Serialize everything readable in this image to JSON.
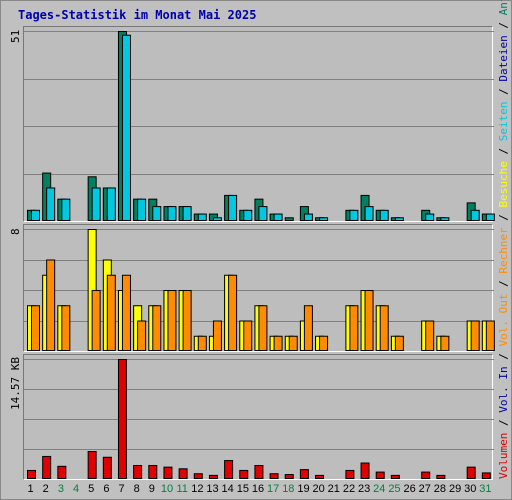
{
  "title": "Tages-Statistik im Monat Mai 2025",
  "max_labels": {
    "requests": "51",
    "visits": "8",
    "volume": "14.57 KB"
  },
  "legend": {
    "volume": "Volumen",
    "vol_in": "Vol. In",
    "vol_out": "Vol. Out",
    "hosts": "Rechner",
    "visits": "Besuche",
    "pages": "Seiten",
    "files": "Dateien",
    "requests": "Anfragen",
    "separator": " / "
  },
  "colors": {
    "requests": "#008060",
    "files": "#00c8e0",
    "visits": "#ffff00",
    "hosts": "#ff8c00",
    "volume": "#e00000",
    "vol_in": "#0000a0",
    "vol_out": "#ff8c00",
    "weekend_day": "#008040",
    "weekday": "#000000"
  },
  "chart_data": [
    {
      "type": "bar",
      "title": "Anfragen / Dateien",
      "categories": [
        "1",
        "2",
        "3",
        "4",
        "5",
        "6",
        "7",
        "8",
        "9",
        "10",
        "11",
        "12",
        "13",
        "14",
        "15",
        "16",
        "17",
        "18",
        "19",
        "20",
        "21",
        "22",
        "23",
        "24",
        "25",
        "26",
        "27",
        "28",
        "29",
        "30",
        "31"
      ],
      "ylim": [
        0,
        51
      ],
      "series": [
        {
          "name": "Anfragen",
          "values": [
            3,
            13,
            6,
            0,
            12,
            9,
            51,
            6,
            6,
            4,
            4,
            2,
            2,
            7,
            3,
            6,
            2,
            1,
            4,
            1,
            0,
            3,
            7,
            3,
            1,
            0,
            3,
            1,
            0,
            5,
            2
          ]
        },
        {
          "name": "Dateien",
          "values": [
            3,
            9,
            6,
            0,
            9,
            9,
            50,
            6,
            4,
            4,
            4,
            2,
            1,
            7,
            3,
            4,
            2,
            0,
            2,
            1,
            0,
            3,
            4,
            3,
            1,
            0,
            2,
            1,
            0,
            3,
            2
          ]
        }
      ]
    },
    {
      "type": "bar",
      "title": "Besuche / Rechner",
      "categories": [
        "1",
        "2",
        "3",
        "4",
        "5",
        "6",
        "7",
        "8",
        "9",
        "10",
        "11",
        "12",
        "13",
        "14",
        "15",
        "16",
        "17",
        "18",
        "19",
        "20",
        "21",
        "22",
        "23",
        "24",
        "25",
        "26",
        "27",
        "28",
        "29",
        "30",
        "31"
      ],
      "ylim": [
        0,
        8
      ],
      "series": [
        {
          "name": "Besuche",
          "values": [
            3,
            5,
            3,
            0,
            8,
            6,
            4,
            3,
            3,
            4,
            4,
            1,
            1,
            5,
            2,
            3,
            1,
            1,
            2,
            1,
            0,
            3,
            4,
            3,
            1,
            0,
            2,
            1,
            0,
            2,
            2
          ]
        },
        {
          "name": "Rechner",
          "values": [
            3,
            6,
            3,
            0,
            4,
            5,
            5,
            2,
            3,
            4,
            4,
            1,
            2,
            5,
            2,
            3,
            1,
            1,
            3,
            1,
            0,
            3,
            4,
            3,
            1,
            0,
            2,
            1,
            0,
            2,
            2
          ]
        }
      ]
    },
    {
      "type": "bar",
      "title": "Volumen",
      "categories": [
        "1",
        "2",
        "3",
        "4",
        "5",
        "6",
        "7",
        "8",
        "9",
        "10",
        "11",
        "12",
        "13",
        "14",
        "15",
        "16",
        "17",
        "18",
        "19",
        "20",
        "21",
        "22",
        "23",
        "24",
        "25",
        "26",
        "27",
        "28",
        "29",
        "30",
        "31"
      ],
      "ylim": [
        0,
        14.57
      ],
      "ylabel": "14.57 KB",
      "series": [
        {
          "name": "Volumen",
          "values": [
            1.1,
            2.8,
            1.6,
            0,
            3.4,
            2.7,
            14.57,
            1.7,
            1.7,
            1.5,
            1.3,
            0.7,
            0.5,
            2.3,
            1.1,
            1.7,
            0.7,
            0.6,
            1.2,
            0.5,
            0,
            1.1,
            2.0,
            0.9,
            0.5,
            0,
            0.9,
            0.5,
            0,
            1.5,
            0.8
          ]
        }
      ]
    }
  ],
  "weekend_days": [
    3,
    4,
    10,
    11,
    17,
    18,
    24,
    25,
    31
  ]
}
